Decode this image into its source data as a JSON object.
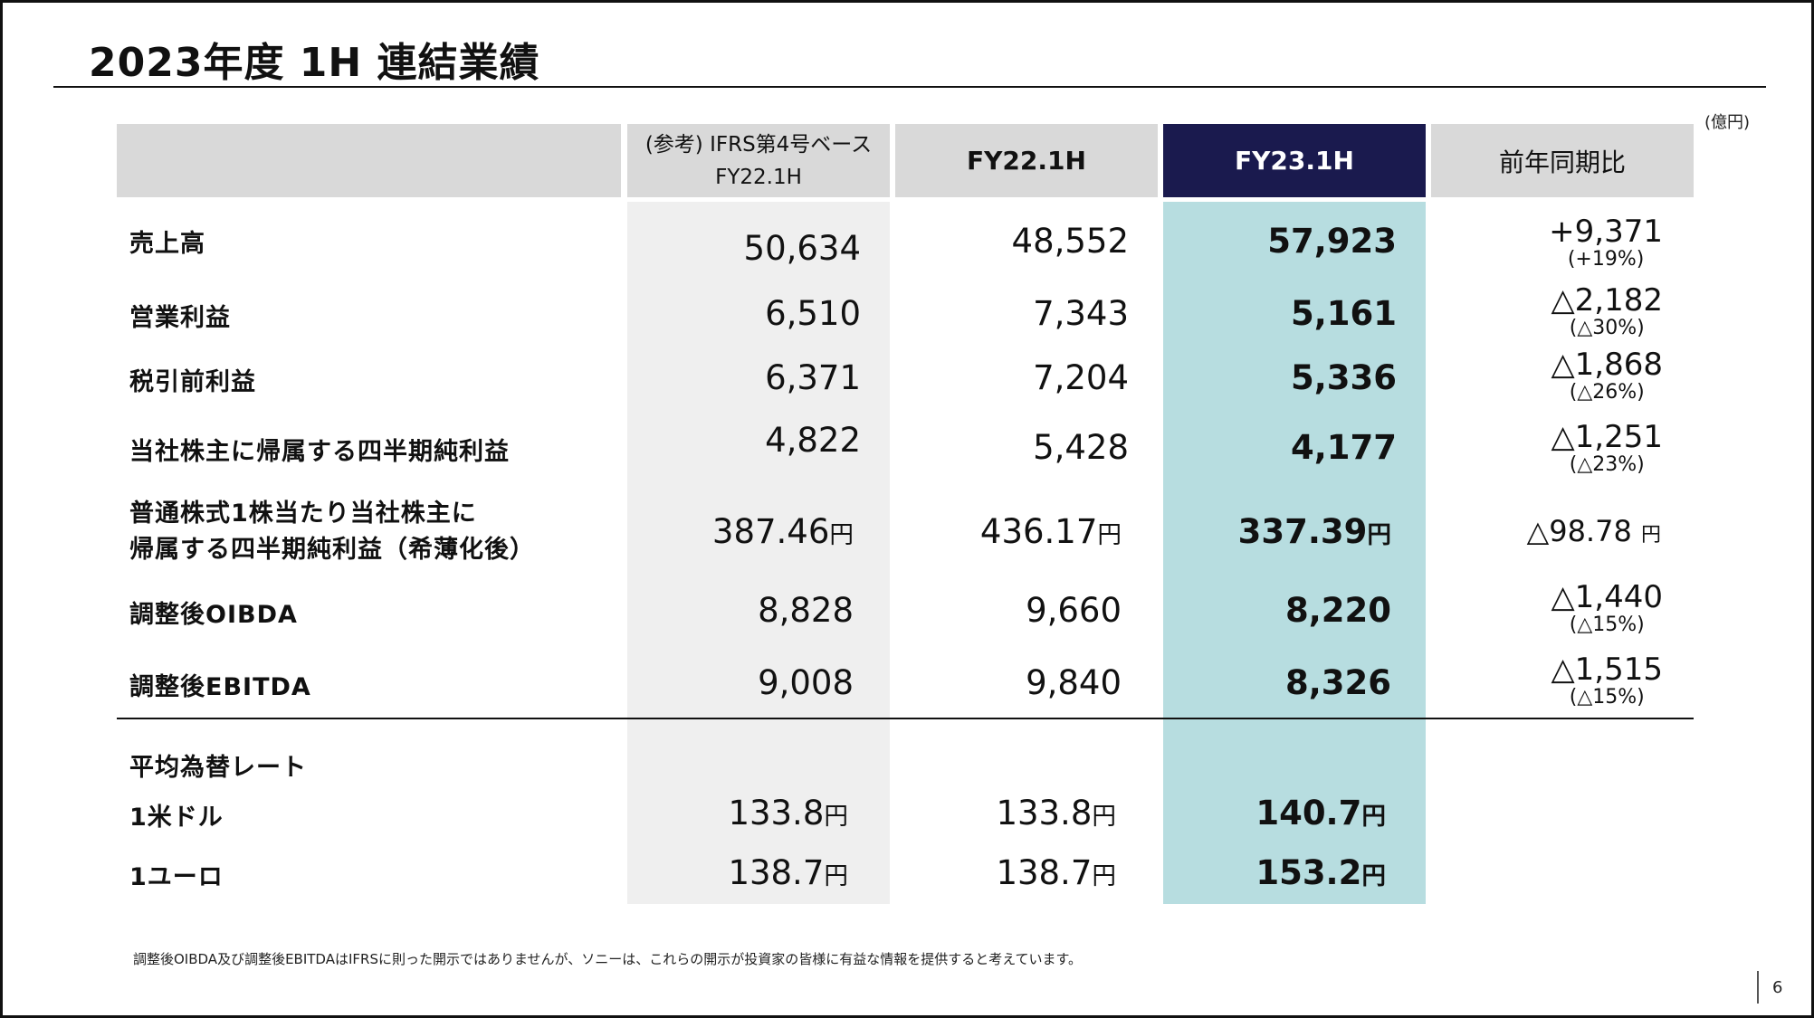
{
  "title": "2023年度 1H 連結業績",
  "unit": "(億円)",
  "headers": {
    "ifrs_line1": "(参考) IFRS第4号ベース",
    "ifrs_line2": "FY22.1H",
    "fy22": "FY22.1H",
    "fy23": "FY23.1H",
    "yoy": "前年同期比"
  },
  "rows": [
    {
      "label": "売上高",
      "ifrs": "50,634",
      "fy22": "48,552",
      "fy23": "57,923",
      "yoy": "+9,371",
      "yoy_pct": "(+19%)"
    },
    {
      "label": "営業利益",
      "ifrs": "6,510",
      "fy22": "7,343",
      "fy23": "5,161",
      "yoy": "△2,182",
      "yoy_pct": "(△30%)"
    },
    {
      "label": "税引前利益",
      "ifrs": "6,371",
      "fy22": "7,204",
      "fy23": "5,336",
      "yoy": "△1,868",
      "yoy_pct": "(△26%)"
    },
    {
      "label": "当社株主に帰属する四半期純利益",
      "ifrs": "4,822",
      "fy22": "5,428",
      "fy23": "4,177",
      "yoy": "△1,251",
      "yoy_pct": "(△23%)"
    },
    {
      "label_line1": "普通株式1株当たり当社株主に",
      "label_line2": "帰属する四半期純利益（希薄化後）",
      "ifrs": "387.46",
      "fy22": "436.17",
      "fy23": "337.39",
      "yoy": "△98.78",
      "yen": "円"
    },
    {
      "label": "調整後OIBDA",
      "ifrs": "8,828",
      "fy22": "9,660",
      "fy23": "8,220",
      "yoy": "△1,440",
      "yoy_pct": "(△15%)"
    },
    {
      "label": "調整後EBITDA",
      "ifrs": "9,008",
      "fy22": "9,840",
      "fy23": "8,326",
      "yoy": "△1,515",
      "yoy_pct": "(△15%)"
    }
  ],
  "fx": {
    "heading": "平均為替レート",
    "usd_label": "1米ドル",
    "usd": {
      "ifrs": "133.8",
      "fy22": "133.8",
      "fy23": "140.7"
    },
    "eur_label": "1ユーロ",
    "eur": {
      "ifrs": "138.7",
      "fy22": "138.7",
      "fy23": "153.2"
    },
    "yen": "円"
  },
  "footnote": "調整後OIBDA及び調整後EBITDAはIFRSに則った開示ではありませんが、ソニーは、これらの開示が投資家の皆様に有益な情報を提供すると考えています。",
  "page_number": "6"
}
